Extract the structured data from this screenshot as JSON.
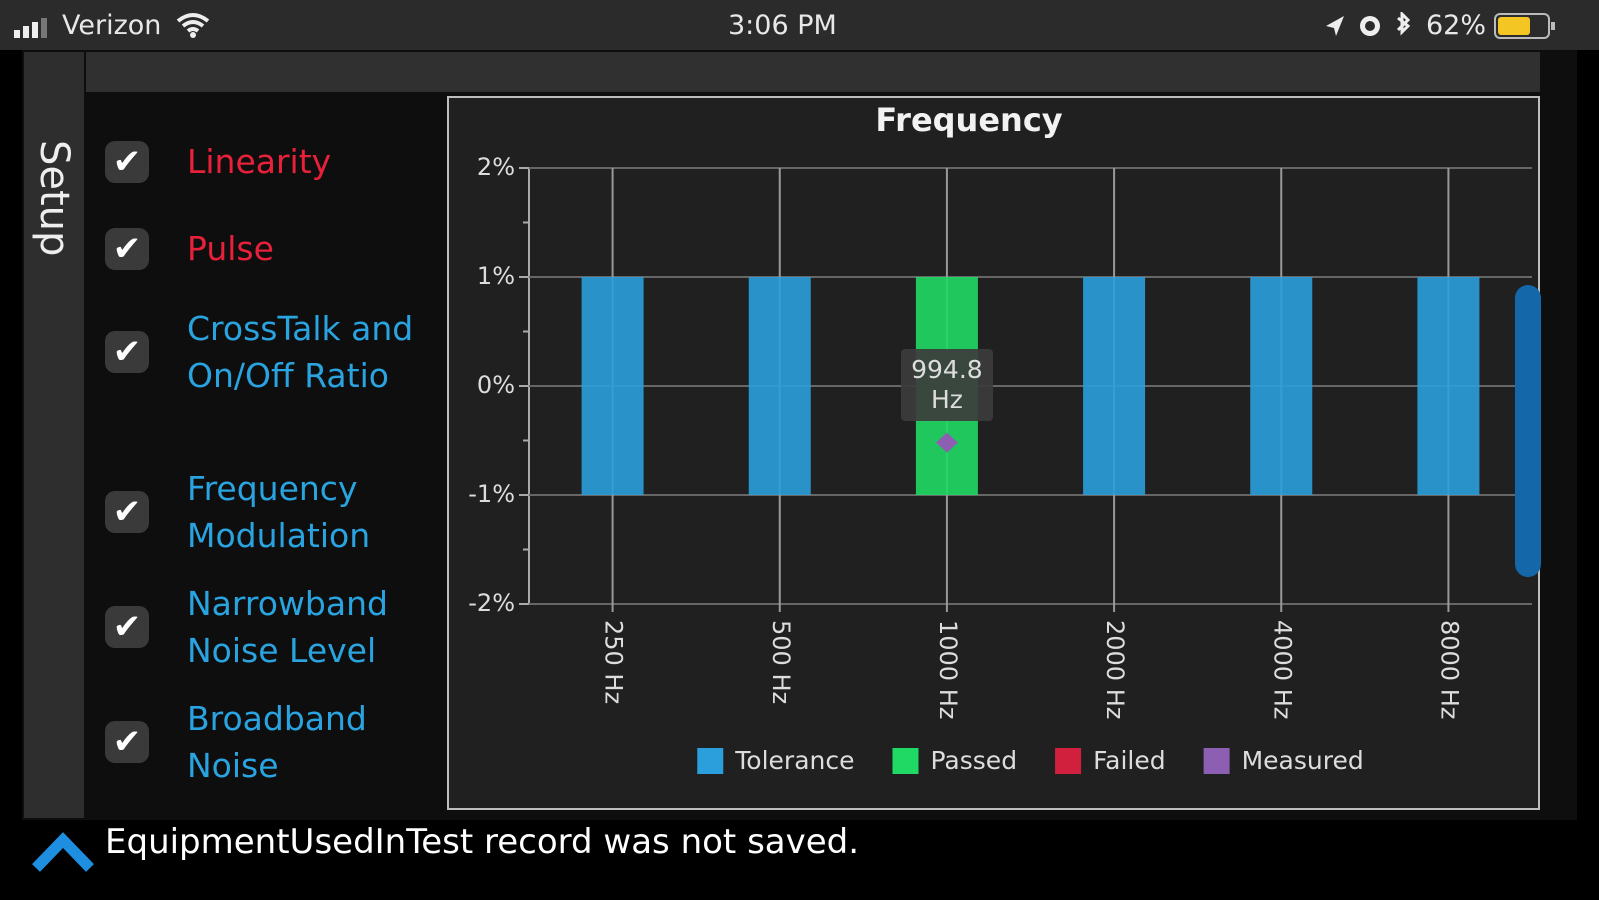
{
  "status_bar": {
    "carrier": "Verizon",
    "time": "3:06 PM",
    "battery": "62%"
  },
  "sidebar": {
    "tab": "Setup"
  },
  "tests": [
    {
      "label": "Linearity",
      "status": "failed"
    },
    {
      "label": "Pulse",
      "status": "failed"
    },
    {
      "label": "CrossTalk and On/Off Ratio",
      "status": "pending"
    },
    {
      "label": "Frequency Modulation",
      "status": "pending"
    },
    {
      "label": "Narrowband Noise Level",
      "status": "pending"
    },
    {
      "label": "Broadband Noise",
      "status": "pending"
    }
  ],
  "chart_data": {
    "type": "range-bar",
    "title": "Frequency",
    "categories": [
      "250 Hz",
      "500 Hz",
      "1000 Hz",
      "2000 Hz",
      "4000 Hz",
      "8000 Hz"
    ],
    "series": [
      {
        "name": "Tolerance",
        "color": "#2a9fdc",
        "low": [
          -1,
          -1,
          null,
          -1,
          -1,
          -1
        ],
        "high": [
          1,
          1,
          null,
          1,
          1,
          1
        ]
      },
      {
        "name": "Passed",
        "color": "#1fd964",
        "low": [
          null,
          null,
          -1,
          null,
          null,
          null
        ],
        "high": [
          null,
          null,
          1,
          null,
          null,
          null
        ]
      },
      {
        "name": "Failed",
        "color": "#d0203e",
        "low": [
          null,
          null,
          null,
          null,
          null,
          null
        ],
        "high": [
          null,
          null,
          null,
          null,
          null,
          null
        ]
      },
      {
        "name": "Measured",
        "color": "#8d5fb3",
        "values": [
          null,
          null,
          -0.52,
          null,
          null,
          null
        ]
      }
    ],
    "tooltip": "994.8 Hz",
    "ylim": [
      -2,
      2
    ],
    "yticks": [
      {
        "value": 2,
        "label": "2%"
      },
      {
        "value": 1,
        "label": "1%"
      },
      {
        "value": 0,
        "label": "0%"
      },
      {
        "value": -1,
        "label": "-1%"
      },
      {
        "value": -2,
        "label": "-2%"
      }
    ],
    "grid": true
  },
  "message": "EquipmentUsedInTest record was not saved."
}
